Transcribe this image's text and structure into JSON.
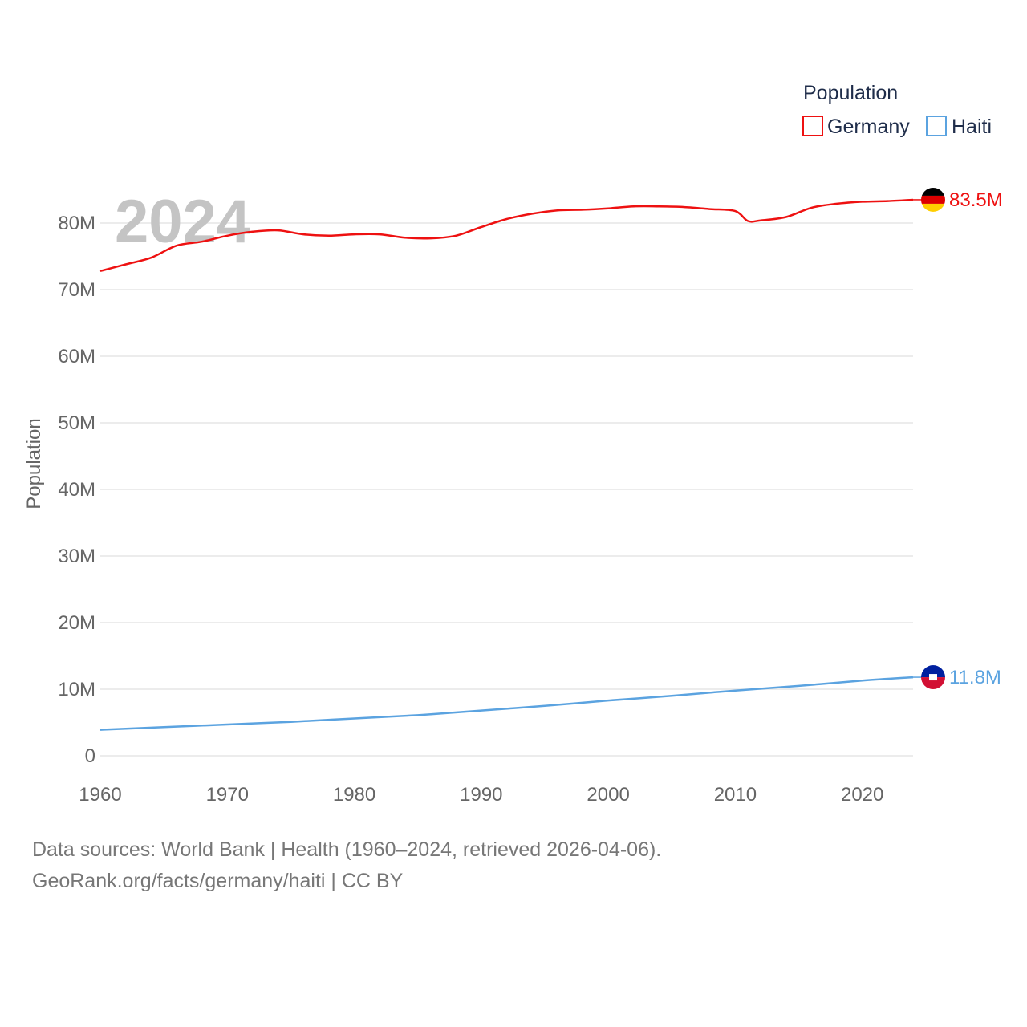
{
  "chart_data": {
    "type": "line",
    "title": "",
    "xlabel": "",
    "ylabel": "Population",
    "xlim": [
      1960,
      2024
    ],
    "ylim": [
      0,
      85000000
    ],
    "grid": true,
    "legend_title": "Population",
    "legend_position": "top-right",
    "current_year": "2024",
    "x_ticks": [
      "1960",
      "1970",
      "1980",
      "1990",
      "2000",
      "2010",
      "2020"
    ],
    "y_ticks": [
      {
        "value": 0,
        "label": "0"
      },
      {
        "value": 10000000,
        "label": "10M"
      },
      {
        "value": 20000000,
        "label": "20M"
      },
      {
        "value": 30000000,
        "label": "30M"
      },
      {
        "value": 40000000,
        "label": "40M"
      },
      {
        "value": 50000000,
        "label": "50M"
      },
      {
        "value": 60000000,
        "label": "60M"
      },
      {
        "value": 70000000,
        "label": "70M"
      },
      {
        "value": 80000000,
        "label": "80M"
      }
    ],
    "series": [
      {
        "name": "Germany",
        "color": "#ee1111",
        "end_label": "83.5M",
        "flag": "germany-flag",
        "points": [
          [
            1960,
            72800000
          ],
          [
            1962,
            73800000
          ],
          [
            1964,
            74800000
          ],
          [
            1966,
            76600000
          ],
          [
            1968,
            77200000
          ],
          [
            1970,
            78100000
          ],
          [
            1972,
            78700000
          ],
          [
            1974,
            78900000
          ],
          [
            1976,
            78300000
          ],
          [
            1978,
            78100000
          ],
          [
            1980,
            78300000
          ],
          [
            1982,
            78300000
          ],
          [
            1984,
            77800000
          ],
          [
            1986,
            77700000
          ],
          [
            1988,
            78100000
          ],
          [
            1990,
            79400000
          ],
          [
            1992,
            80600000
          ],
          [
            1994,
            81400000
          ],
          [
            1996,
            81900000
          ],
          [
            1998,
            82000000
          ],
          [
            2000,
            82200000
          ],
          [
            2002,
            82500000
          ],
          [
            2004,
            82500000
          ],
          [
            2006,
            82400000
          ],
          [
            2008,
            82100000
          ],
          [
            2010,
            81800000
          ],
          [
            2011,
            80300000
          ],
          [
            2012,
            80400000
          ],
          [
            2014,
            80900000
          ],
          [
            2016,
            82300000
          ],
          [
            2018,
            82900000
          ],
          [
            2020,
            83200000
          ],
          [
            2022,
            83300000
          ],
          [
            2024,
            83500000
          ]
        ]
      },
      {
        "name": "Haiti",
        "color": "#5ba3e0",
        "end_label": "11.8M",
        "flag": "haiti-flag",
        "points": [
          [
            1960,
            3900000
          ],
          [
            1965,
            4300000
          ],
          [
            1970,
            4700000
          ],
          [
            1975,
            5100000
          ],
          [
            1980,
            5600000
          ],
          [
            1985,
            6100000
          ],
          [
            1990,
            6800000
          ],
          [
            1995,
            7500000
          ],
          [
            2000,
            8300000
          ],
          [
            2005,
            9000000
          ],
          [
            2010,
            9800000
          ],
          [
            2015,
            10500000
          ],
          [
            2020,
            11300000
          ],
          [
            2024,
            11800000
          ]
        ]
      }
    ]
  },
  "footer": {
    "line1": "Data sources: World Bank | Health (1960–2024, retrieved 2026-04-06).",
    "line2": "GeoRank.org/facts/germany/haiti | CC BY"
  },
  "colors": {
    "germany": "#ee1111",
    "haiti": "#5ba3e0",
    "grid": "#e6e6e6",
    "year_watermark": "#c4c4c4"
  }
}
